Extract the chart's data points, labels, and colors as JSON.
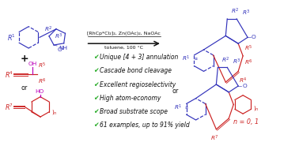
{
  "bg_color": "#ffffff",
  "blue": "#3333bb",
  "red": "#cc2222",
  "magenta": "#bb00bb",
  "green": "#22aa22",
  "black": "#111111",
  "catalyst_line1": "[RhCp*Cl₂]₂, Zn(OAc)₂, NaOAc",
  "catalyst_line2": "toluene, 100 °C",
  "bullets": [
    "Unique [4 + 3] annulation",
    "Cascade bond cleavage",
    "Excellent regioselectivity",
    "High atom-economy",
    "Broad substrate scope",
    "61 examples, up to 91% yield"
  ],
  "or_text": "or",
  "n_text": "n = 0, 1",
  "plus_text": "+",
  "or2_text": "or"
}
